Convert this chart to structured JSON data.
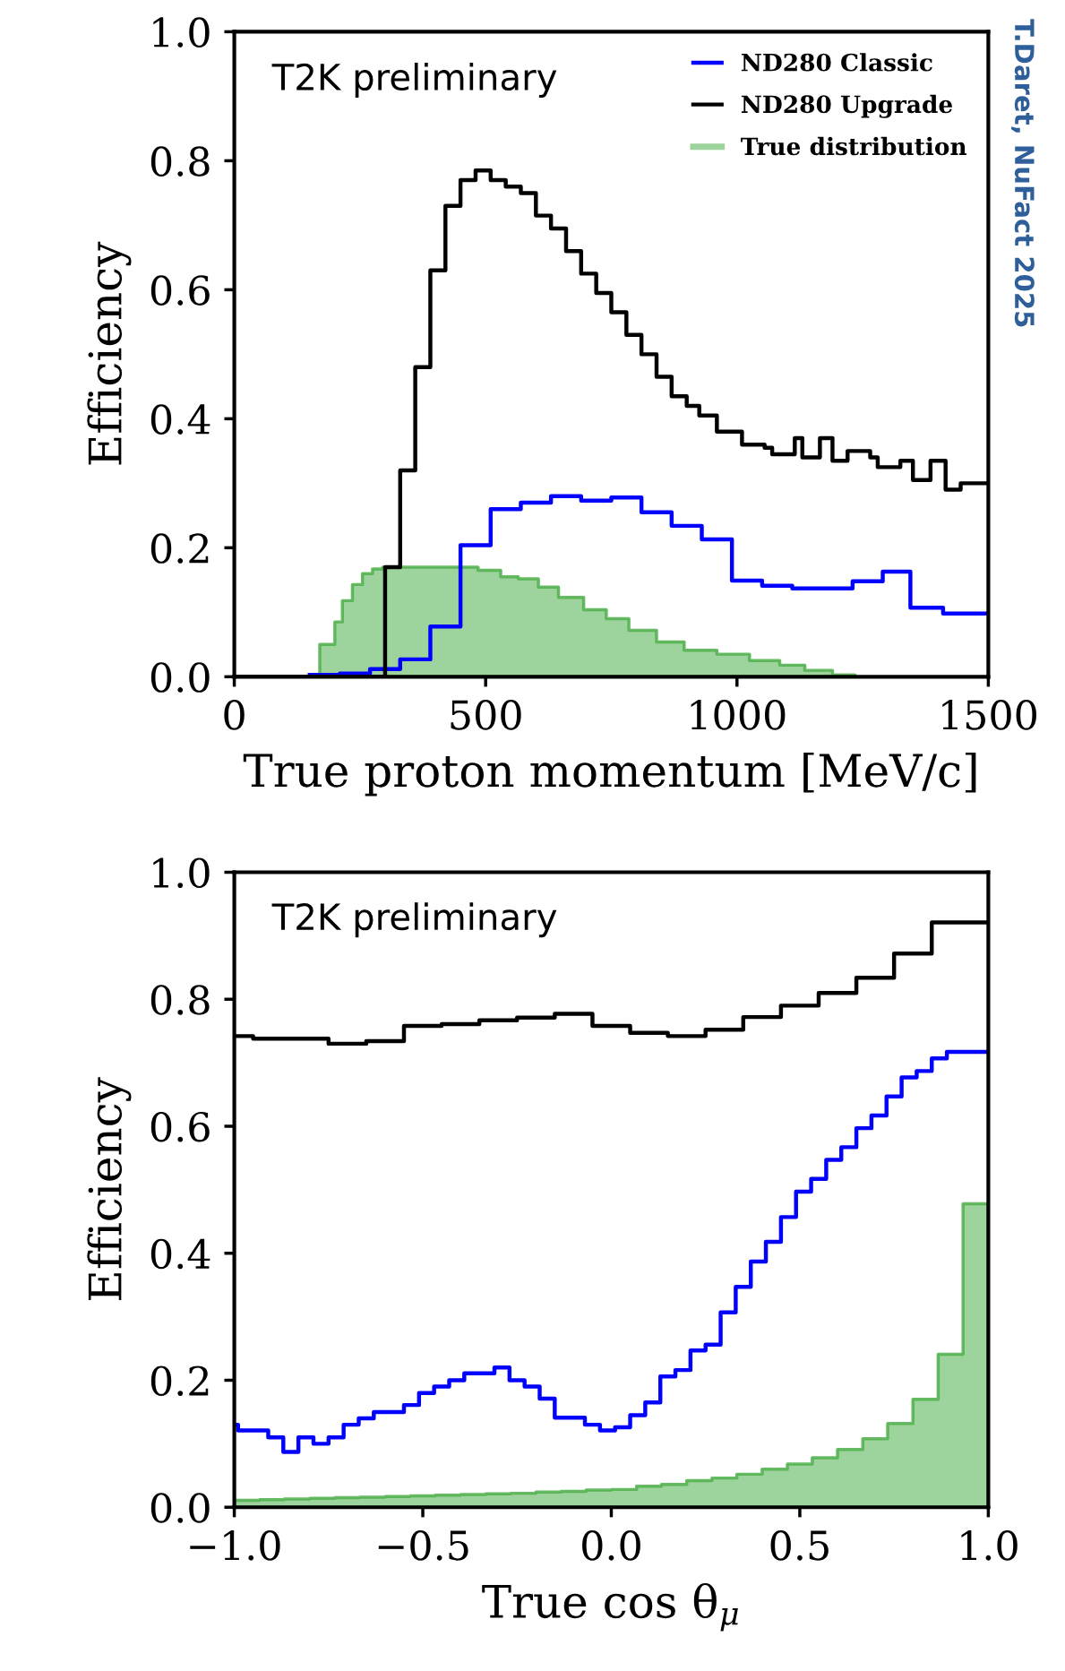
{
  "chart_data": [
    {
      "type": "step",
      "xlabel": "True proton momentum [MeV/c]",
      "ylabel": "Efficiency",
      "annotations": [
        "T2K preliminary",
        "T.Daret, NuFact 2025"
      ],
      "xlim": [
        0,
        1500
      ],
      "ylim": [
        0,
        1.0
      ],
      "xticks": [
        0,
        500,
        1000,
        1500
      ],
      "yticks": [
        {
          "value": 0,
          "label": "0.0"
        },
        {
          "value": 0.2,
          "label": "0.2"
        },
        {
          "value": 0.4,
          "label": "0.4"
        },
        {
          "value": 0.6,
          "label": "0.6"
        },
        {
          "value": 0.8,
          "label": "0.8"
        },
        {
          "value": 1.0,
          "label": "1.0"
        }
      ],
      "legend": "top right",
      "series": [
        {
          "name": "ND280 Classic",
          "type": "step",
          "color": "#0000ff",
          "x": [
            150,
            210,
            270,
            330,
            390,
            450,
            510,
            570,
            630,
            690,
            750,
            810,
            870,
            930,
            990,
            1050,
            1110,
            1230,
            1290,
            1345,
            1410,
            1500
          ],
          "values": [
            0.003,
            0.005,
            0.012,
            0.027,
            0.078,
            0.204,
            0.26,
            0.27,
            0.28,
            0.273,
            0.278,
            0.255,
            0.234,
            0.213,
            0.149,
            0.141,
            0.137,
            0.148,
            0.163,
            0.107,
            0.098,
            0.098
          ]
        },
        {
          "name": "ND280 Upgrade",
          "type": "step",
          "color": "#000000",
          "x": [
            0,
            300,
            330,
            360,
            390,
            420,
            450,
            480,
            510,
            540,
            570,
            600,
            630,
            660,
            690,
            720,
            750,
            780,
            810,
            840,
            870,
            900,
            925,
            960,
            1010,
            1055,
            1070,
            1115,
            1130,
            1165,
            1190,
            1220,
            1265,
            1280,
            1325,
            1350,
            1385,
            1415,
            1445,
            1500
          ],
          "values": [
            0,
            0.17,
            0.32,
            0.48,
            0.63,
            0.73,
            0.77,
            0.785,
            0.77,
            0.76,
            0.75,
            0.715,
            0.695,
            0.66,
            0.625,
            0.595,
            0.565,
            0.53,
            0.5,
            0.465,
            0.435,
            0.42,
            0.405,
            0.38,
            0.36,
            0.355,
            0.345,
            0.37,
            0.34,
            0.37,
            0.335,
            0.35,
            0.34,
            0.325,
            0.335,
            0.305,
            0.335,
            0.29,
            0.3,
            0.3
          ]
        },
        {
          "name": "True distribution",
          "type": "area",
          "color": "#4daf4a",
          "x": [
            170,
            200,
            215,
            235,
            255,
            275,
            295,
            485,
            530,
            565,
            605,
            645,
            695,
            740,
            785,
            840,
            895,
            960,
            1025,
            1085,
            1135,
            1190,
            1235
          ],
          "values": [
            0.05,
            0.085,
            0.118,
            0.143,
            0.16,
            0.167,
            0.17,
            0.165,
            0.155,
            0.152,
            0.139,
            0.123,
            0.104,
            0.09,
            0.072,
            0.054,
            0.041,
            0.035,
            0.025,
            0.018,
            0.01,
            0.003,
            0.003
          ]
        }
      ]
    },
    {
      "type": "step",
      "xlabel": "True cos θ$_{μ}$",
      "ylabel": "Efficiency",
      "annotations": [
        "T2K preliminary"
      ],
      "xlim": [
        -1,
        1
      ],
      "ylim": [
        0,
        1.0
      ],
      "xticks": [
        {
          "value": -1,
          "label": "−1.0"
        },
        {
          "value": -0.5,
          "label": "−0.5"
        },
        {
          "value": 0,
          "label": "0.0"
        },
        {
          "value": 0.5,
          "label": "0.5"
        },
        {
          "value": 1,
          "label": "1.0"
        }
      ],
      "yticks": [
        {
          "value": 0,
          "label": "0.0"
        },
        {
          "value": 0.2,
          "label": "0.2"
        },
        {
          "value": 0.4,
          "label": "0.4"
        },
        {
          "value": 0.6,
          "label": "0.6"
        },
        {
          "value": 0.8,
          "label": "0.8"
        },
        {
          "value": 1.0,
          "label": "1.0"
        }
      ],
      "series": [
        {
          "type": "step",
          "color": "#0000ff",
          "x": [
            -1,
            -0.99,
            -0.91,
            -0.87,
            -0.83,
            -0.79,
            -0.75,
            -0.71,
            -0.67,
            -0.63,
            -0.55,
            -0.51,
            -0.47,
            -0.43,
            -0.39,
            -0.31,
            -0.27,
            -0.23,
            -0.19,
            -0.15,
            -0.07,
            -0.03,
            0.01,
            0.05,
            0.09,
            0.13,
            0.17,
            0.21,
            0.25,
            0.29,
            0.33,
            0.37,
            0.41,
            0.45,
            0.49,
            0.53,
            0.57,
            0.61,
            0.65,
            0.69,
            0.73,
            0.77,
            0.81,
            0.85,
            0.89,
            1.0
          ],
          "values": [
            0.13,
            0.121,
            0.11,
            0.087,
            0.11,
            0.1,
            0.11,
            0.13,
            0.14,
            0.15,
            0.161,
            0.18,
            0.19,
            0.2,
            0.211,
            0.22,
            0.2,
            0.19,
            0.171,
            0.141,
            0.13,
            0.121,
            0.126,
            0.145,
            0.165,
            0.206,
            0.216,
            0.247,
            0.256,
            0.307,
            0.347,
            0.387,
            0.418,
            0.457,
            0.497,
            0.517,
            0.547,
            0.567,
            0.597,
            0.617,
            0.647,
            0.677,
            0.687,
            0.707,
            0.717,
            0.717
          ]
        },
        {
          "type": "step",
          "color": "#000000",
          "x": [
            -1,
            -0.95,
            -0.75,
            -0.65,
            -0.55,
            -0.45,
            -0.35,
            -0.25,
            -0.15,
            -0.05,
            0.05,
            0.15,
            0.25,
            0.35,
            0.45,
            0.55,
            0.65,
            0.75,
            0.85,
            1.0
          ],
          "values": [
            0.742,
            0.738,
            0.73,
            0.734,
            0.758,
            0.761,
            0.767,
            0.771,
            0.777,
            0.758,
            0.747,
            0.742,
            0.752,
            0.772,
            0.79,
            0.81,
            0.834,
            0.872,
            0.921,
            0.921
          ]
        },
        {
          "type": "area",
          "color": "#4daf4a",
          "x": [
            -1,
            -0.933,
            -0.867,
            -0.8,
            -0.733,
            -0.667,
            -0.6,
            -0.533,
            -0.467,
            -0.4,
            -0.333,
            -0.267,
            -0.2,
            -0.133,
            -0.067,
            0,
            0.067,
            0.133,
            0.2,
            0.267,
            0.333,
            0.4,
            0.467,
            0.533,
            0.6,
            0.667,
            0.733,
            0.8,
            0.867,
            0.933,
            1
          ],
          "values": [
            0.011,
            0.012,
            0.013,
            0.014,
            0.015,
            0.016,
            0.017,
            0.018,
            0.019,
            0.02,
            0.021,
            0.022,
            0.024,
            0.025,
            0.027,
            0.028,
            0.033,
            0.036,
            0.042,
            0.046,
            0.052,
            0.06,
            0.068,
            0.078,
            0.091,
            0.108,
            0.132,
            0.17,
            0.241,
            0.478,
            0.478
          ]
        }
      ]
    }
  ]
}
